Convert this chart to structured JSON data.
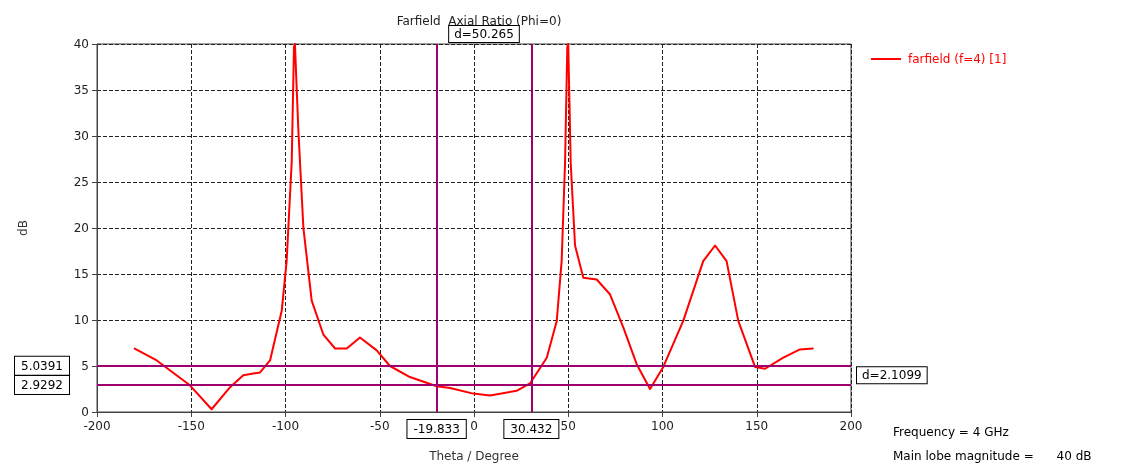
{
  "chart_data": {
    "type": "line",
    "title": "Farfield  Axial Ratio (Phi=0)",
    "xlabel": "Theta / Degree",
    "ylabel": "dB",
    "series": [
      {
        "name": "farfield (f=4) [1]",
        "color": "#ff0000",
        "x": [
          -180,
          -168.3,
          -150.7,
          -139.2,
          -129.4,
          -122.4,
          -113.5,
          -108.2,
          -102,
          -99.4,
          -96.7,
          -95.5,
          -95,
          -93.2,
          -90.5,
          -86.1,
          -79.9,
          -73.7,
          -67.5,
          -60.5,
          -51.6,
          -44.6,
          -34,
          -19.8,
          -12.7,
          -0.4,
          8.5,
          22.6,
          29.7,
          38.6,
          43.9,
          46.5,
          48.3,
          49.5,
          50,
          51.3,
          53.6,
          58,
          65.1,
          72.1,
          79.2,
          86.3,
          93.4,
          100.4,
          111,
          121.6,
          127.9,
          134,
          140.2,
          149.1,
          154.4,
          164.1,
          172.9,
          179.7
        ],
        "values": [
          6.9,
          5.6,
          2.9,
          0.3,
          2.7,
          4.0,
          4.3,
          5.6,
          11,
          16.4,
          27.2,
          39.7,
          40,
          30.7,
          20,
          12.1,
          8.4,
          6.9,
          6.9,
          8.1,
          6.7,
          5.0,
          3.8,
          2.8,
          2.6,
          2.0,
          1.8,
          2.3,
          3.1,
          5.9,
          9.9,
          16.4,
          27.1,
          39.7,
          40,
          27.1,
          18.1,
          14.6,
          14.4,
          12.8,
          9.2,
          5.2,
          2.5,
          4.9,
          9.9,
          16.4,
          18.1,
          16.4,
          9.9,
          4.9,
          4.7,
          5.9,
          6.8,
          6.9
        ]
      }
    ],
    "xlim": [
      -200,
      200
    ],
    "xticks": [
      -200,
      -150,
      -100,
      -50,
      0,
      50,
      100,
      150,
      200
    ],
    "ylim": [
      0,
      40
    ],
    "yticks": [
      0,
      5,
      10,
      15,
      20,
      25,
      30,
      35,
      40
    ],
    "ref_lines": [
      {
        "axis": "x",
        "value": -19.833,
        "label": "-19.833",
        "color": "#a0006e"
      },
      {
        "axis": "x",
        "value": 30.432,
        "label": "30.432",
        "color": "#a0006e"
      },
      {
        "axis": "y",
        "value": 5.0391,
        "label": "5.0391",
        "color": "#a0006e"
      },
      {
        "axis": "y",
        "value": 2.9292,
        "label": "2.9292",
        "color": "#a0006e"
      }
    ],
    "annotations": [
      "d=50.265",
      "d=2.1099",
      "Frequency = 4 GHz",
      "Main lobe magnitude =      40 dB"
    ],
    "grid": true,
    "legend": "top right",
    "line_style": "solid",
    "marker": "none"
  }
}
